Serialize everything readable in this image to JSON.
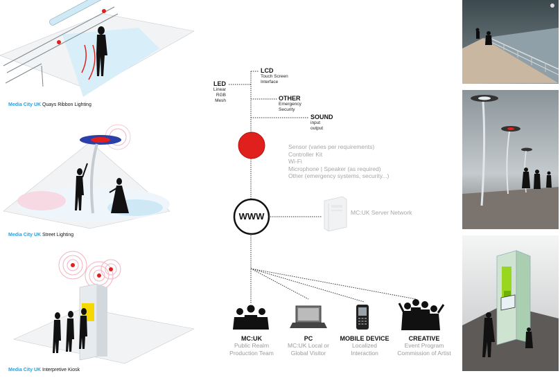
{
  "left_panels": [
    {
      "brand": "Media City UK",
      "caption": "Quays Ribbon Lighting"
    },
    {
      "brand": "Media City UK",
      "caption": "Street Lighting"
    },
    {
      "brand": "Media City UK",
      "caption": "Interpretive Kiosk"
    }
  ],
  "diagram": {
    "led": {
      "title": "LED",
      "lines": [
        "Linear",
        "RGB",
        "Mesh"
      ]
    },
    "lcd": {
      "title": "LCD",
      "lines": [
        "Touch Screen",
        "Interface"
      ]
    },
    "other": {
      "title": "OTHER",
      "lines": [
        "Emergency",
        "Security"
      ]
    },
    "sound": {
      "title": "SOUND",
      "lines": [
        "input",
        "output"
      ]
    },
    "controller_items": [
      "Sensor (varies per requirements)",
      "Controller Kit",
      "Wi-Fi",
      "Microphone | Speaker (as required)",
      "Other (emergency systems, security...)"
    ],
    "www_label": "WWW",
    "server_label": "MC:UK Server Network",
    "nodes": [
      {
        "title": "MC:UK",
        "sub": [
          "Public Realm",
          "Production Team"
        ]
      },
      {
        "title": "PC",
        "sub": [
          "MC:UK Local or",
          "Global Visitor"
        ]
      },
      {
        "title": "MOBILE DEVICE",
        "sub": [
          "Localized",
          "Interaction"
        ]
      },
      {
        "title": "CREATIVE",
        "sub": [
          "Event Program",
          "Commission of Artist"
        ]
      }
    ]
  },
  "colors": {
    "controller_red": "#e0201c",
    "brand_blue": "#2a9fd8",
    "light_blue": "#9fd6ef",
    "kiosk_green": "#8fd400"
  }
}
